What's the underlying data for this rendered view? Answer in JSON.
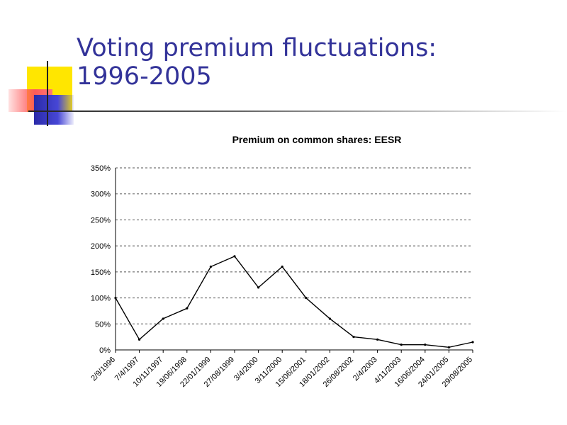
{
  "slide": {
    "title_lines": [
      "Voting premium fluctuations:",
      "1996-2005"
    ]
  },
  "colors": {
    "title": "#333399",
    "deco_yellow": "#ffe600",
    "deco_red": "#ff5a5a",
    "deco_blue": "#3333cc",
    "series": "#000000",
    "grid": "#555555"
  },
  "chart_data": {
    "type": "line",
    "title": "Premium on common shares: EESR",
    "xlabel": "",
    "ylabel": "",
    "ylim": [
      0,
      350
    ],
    "y_ticks": [
      0,
      50,
      100,
      150,
      200,
      250,
      300,
      350
    ],
    "y_tick_labels": [
      "0%",
      "50%",
      "100%",
      "150%",
      "200%",
      "250%",
      "300%",
      "350%"
    ],
    "x_tick_labels": [
      "2/9/1996",
      "7/4/1997",
      "10/11/1997",
      "19/06/1998",
      "22/01/1999",
      "27/08/1999",
      "3/4/2000",
      "3/11/2000",
      "15/06/2001",
      "18/01/2002",
      "26/08/2002",
      "2/4/2003",
      "4/11/2003",
      "16/06/2004",
      "24/01/2005",
      "29/08/2005"
    ],
    "grid": true,
    "legend": "none",
    "series": [
      {
        "x": [
          "2/9/1996",
          "7/4/1997",
          "10/11/1997",
          "19/06/1998",
          "22/01/1999",
          "27/08/1999",
          "3/4/2000",
          "3/11/2000",
          "15/06/2001",
          "18/01/2002",
          "26/08/2002",
          "2/4/2003",
          "4/11/2003",
          "16/06/2004",
          "24/01/2005",
          "29/08/2005"
        ],
        "values": [
          100,
          20,
          60,
          80,
          160,
          180,
          120,
          160,
          100,
          60,
          25,
          20,
          10,
          10,
          5,
          15
        ]
      }
    ]
  }
}
